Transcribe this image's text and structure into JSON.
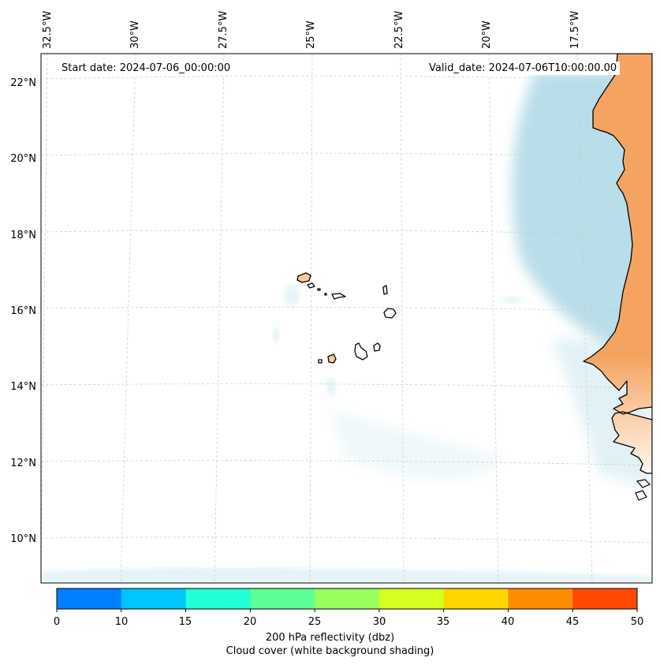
{
  "map": {
    "lon_labels": [
      "32.5°W",
      "30°W",
      "27.5°W",
      "25°W",
      "22.5°W",
      "20°W",
      "17.5°W"
    ],
    "lat_labels": [
      "22°N",
      "20°N",
      "18°N",
      "16°N",
      "14°N",
      "12°N",
      "10°N"
    ],
    "start_date": "Start date: 2024-07-06_00:00:00",
    "valid_date": "Valid_date: 2024-07-06T10:00:00.00",
    "land_color": "#f4a460",
    "coast_color": "#000000",
    "cloud_color": "#add8e6"
  },
  "colorbar": {
    "colors": [
      "#007fff",
      "#00c5ff",
      "#20ffd6",
      "#5cff94",
      "#99ff5c",
      "#d6ff20",
      "#ffd500",
      "#ff8c00",
      "#ff4a00"
    ],
    "ticks": [
      "0",
      "10",
      "15",
      "20",
      "25",
      "30",
      "35",
      "40",
      "45",
      "50"
    ],
    "label_line1": "200 hPa reflectivity (dbz)",
    "label_line2": "Cloud cover (white background shading)"
  }
}
